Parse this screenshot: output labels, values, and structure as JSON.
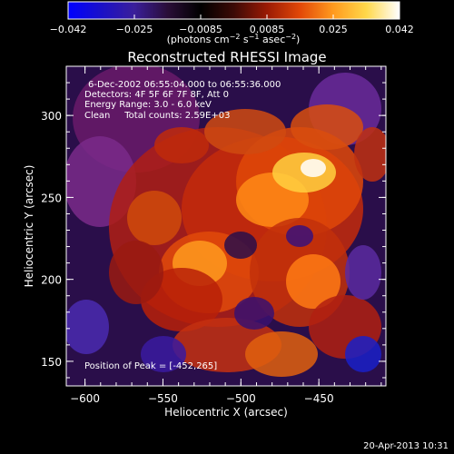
{
  "colorbar": {
    "ticks": [
      "−0.042",
      "−0.025",
      "−0.0085",
      "0.0085",
      "0.025",
      "0.042"
    ],
    "units_text": "(photons cm",
    "units_sup1": "−2",
    "units_mid": " s",
    "units_sup2": "−1",
    "units_mid2": " asec",
    "units_sup3": "−2",
    "units_end": ")",
    "colors": [
      "#0000ff",
      "#1a10c8",
      "#3a1e9a",
      "#2a0e38",
      "#000000",
      "#3c0a06",
      "#9a1a04",
      "#e24808",
      "#ff9a1e",
      "#ffd84a",
      "#ffffff"
    ]
  },
  "chart_data": {
    "type": "heatmap",
    "title": "Reconstructed RHESSI Image",
    "xlabel": "Heliocentric X (arcsec)",
    "ylabel": "Heliocentric Y (arcsec)",
    "xlim": [
      -612,
      -407
    ],
    "ylim": [
      135,
      330
    ],
    "xticks": [
      -600,
      -550,
      -500,
      -450
    ],
    "yticks": [
      150,
      200,
      250,
      300
    ],
    "value_range": [
      -0.042,
      0.042
    ],
    "peak": [
      -452,
      265
    ],
    "annotations": {
      "time_range": "6-Dec-2002 06:55:04.000 to 06:55:36.000",
      "detectors": "Detectors: 4F 5F 6F 7F 8F, Att 0",
      "energy": "Energy Range: 3.0 - 6.0 keV",
      "clean": "Clean     Total counts: 2.59E+03",
      "peak_text": "Position of Peak = [-452,265]"
    }
  },
  "footer": {
    "timestamp": "20-Apr-2013 10:31"
  }
}
